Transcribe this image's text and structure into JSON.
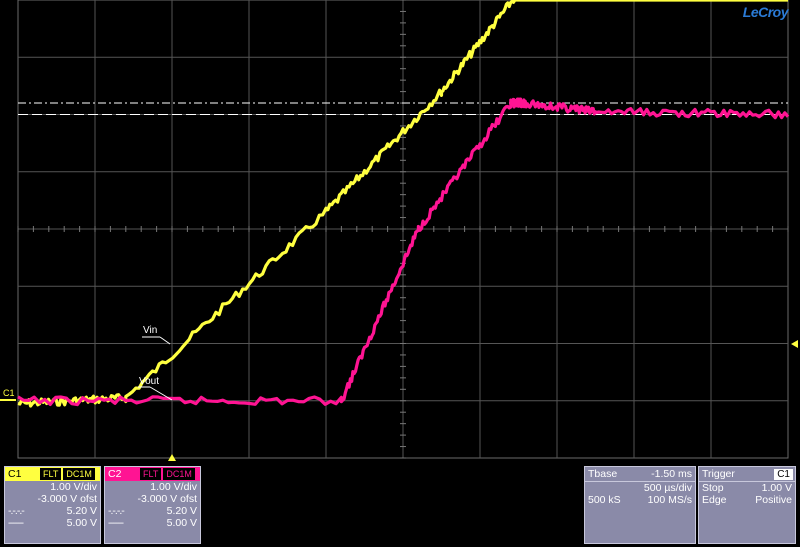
{
  "brand": "LeCroy",
  "traces": {
    "vin_label": "Vin",
    "vout_label": "Vout",
    "channel_marker": "C1",
    "vin_color": "#ffff40",
    "vout_color": "#ff1493"
  },
  "channels": [
    {
      "name": "C1",
      "coupling": [
        "FLT",
        "DC1M"
      ],
      "scale": "1.00 V/div",
      "offset": "-3.000 V ofst",
      "cursor1_symbol": "-.-.-.-",
      "cursor1_value": "5.20 V",
      "cursor2_symbol": "------",
      "cursor2_value": "5.00 V",
      "color": "#ffff40"
    },
    {
      "name": "C2",
      "coupling": [
        "FLT",
        "DC1M"
      ],
      "scale": "1.00 V/div",
      "offset": "-3.000 V ofst",
      "cursor1_symbol": "-.-.-.-",
      "cursor1_value": "5.20 V",
      "cursor2_symbol": "------",
      "cursor2_value": "5.00 V",
      "color": "#ff1493"
    }
  ],
  "timebase": {
    "label": "Tbase",
    "delay": "-1.50 ms",
    "scale": "500 µs/div",
    "samples": "500 kS",
    "rate": "100 MS/s"
  },
  "trigger": {
    "label": "Trigger",
    "channel": "C1",
    "mode": "Stop",
    "level": "1.00 V",
    "type": "Edge",
    "slope": "Positive"
  },
  "chart_data": {
    "type": "line",
    "xlim": [
      -5,
      5
    ],
    "ylim": [
      -4,
      4
    ],
    "grid": true,
    "cursors_v": [
      5.2,
      5.0
    ],
    "series": [
      {
        "name": "Vin",
        "color": "#ffff40",
        "x": [
          -5,
          -3.6,
          -1.0,
          0.5,
          1.6,
          5
        ],
        "y": [
          -3.05,
          -2.95,
          0.3,
          2.4,
          4.3,
          4.3
        ]
      },
      {
        "name": "Vout",
        "color": "#ff1493",
        "x": [
          -5,
          -0.8,
          0.2,
          1.4,
          1.6,
          2.5,
          5
        ],
        "y": [
          -3.0,
          -3.0,
          0.0,
          2.2,
          2.2,
          2.05,
          2.0
        ]
      }
    ]
  }
}
